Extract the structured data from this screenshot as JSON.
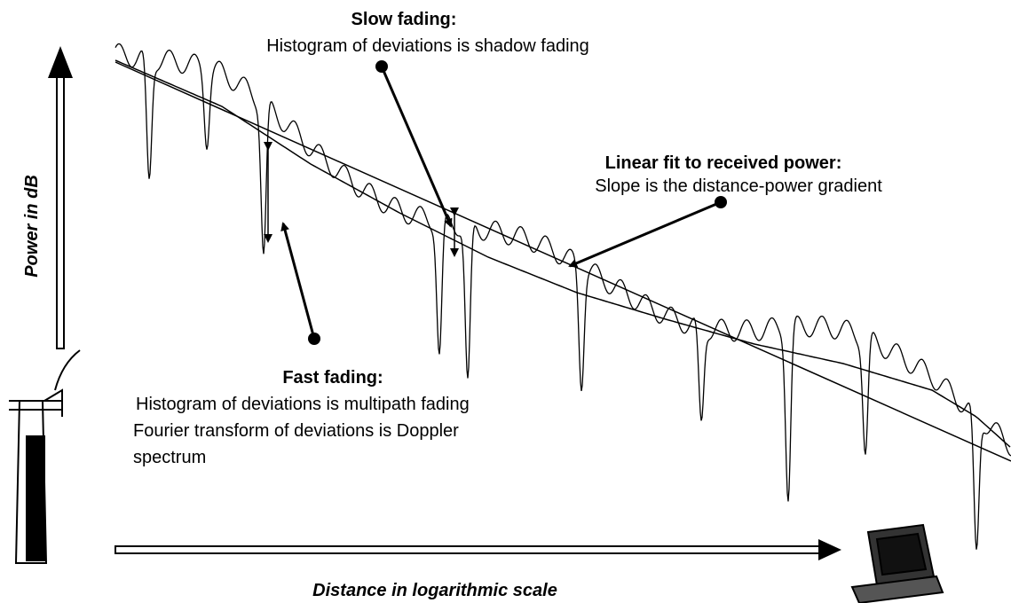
{
  "slow_fading": {
    "title": "Slow fading:",
    "text": "Histogram of deviations is shadow fading"
  },
  "linear_fit": {
    "title": "Linear fit to received power:",
    "text": "Slope is the distance-power gradient"
  },
  "fast_fading": {
    "title": "Fast fading:",
    "lines": [
      "Histogram of deviations is multipath fading",
      "Fourier transform of deviations is Doppler",
      "spectrum"
    ]
  },
  "y_axis_label": "Power in dB",
  "x_axis_label": "Distance in logarithmic scale"
}
